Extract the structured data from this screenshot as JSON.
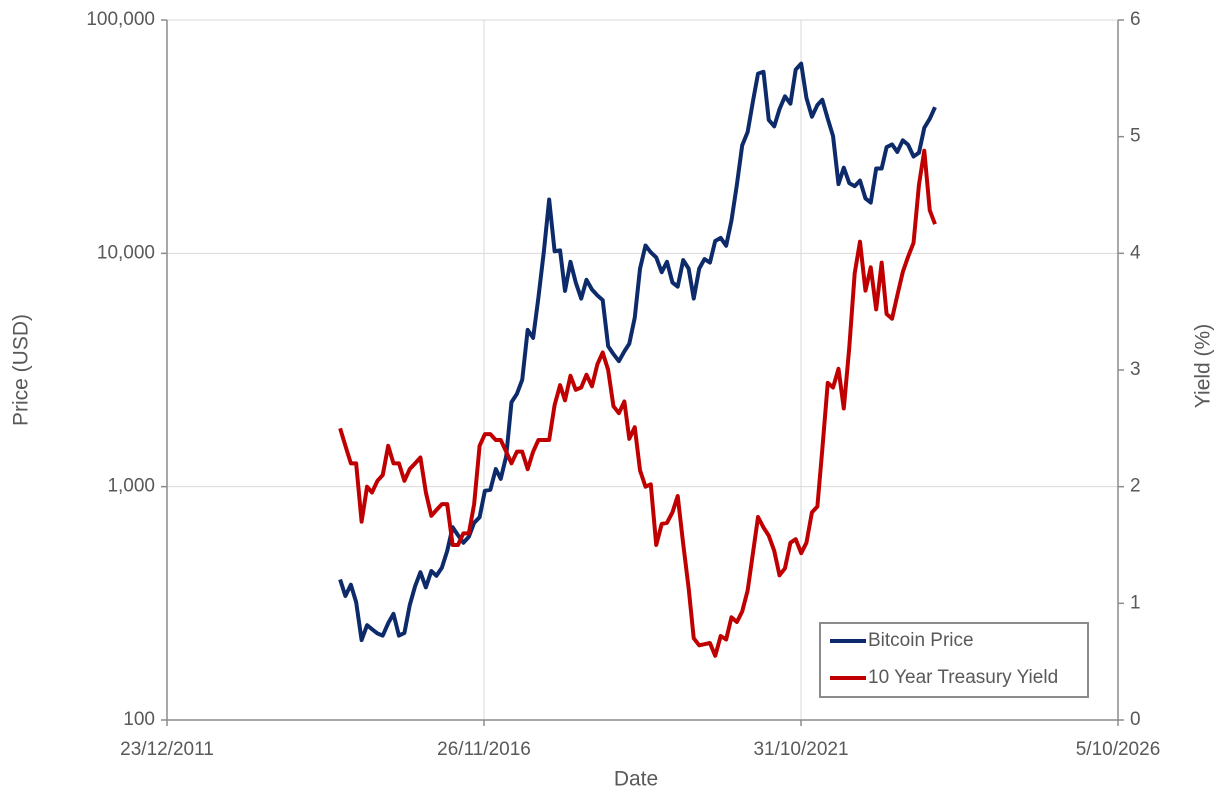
{
  "chart_data": {
    "type": "line",
    "xlabel": "Date",
    "ylabel": "Price (USD)",
    "y2label": "Yield (%)",
    "xlim": [
      "2011-12-23",
      "2026-10-05"
    ],
    "xticks": [
      {
        "value": "2011-12-23",
        "label": "23/12/2011"
      },
      {
        "value": "2016-11-26",
        "label": "26/11/2016"
      },
      {
        "value": "2021-10-31",
        "label": "31/10/2021"
      },
      {
        "value": "2026-10-05",
        "label": "5/10/2026"
      }
    ],
    "ylim": [
      100,
      100000
    ],
    "yscale": "log",
    "yticks": [
      100,
      {
        "value": 1000,
        "label": "1,000"
      },
      {
        "value": 10000,
        "label": "10,000"
      },
      {
        "value": 100000,
        "label": "100,000"
      }
    ],
    "y2lim": [
      0,
      6
    ],
    "y2ticks": [
      0,
      1,
      2,
      3,
      4,
      5,
      6
    ],
    "grid": true,
    "legend": "lower right",
    "x": [
      "2014-09",
      "2014-10",
      "2014-11",
      "2014-12",
      "2015-01",
      "2015-02",
      "2015-03",
      "2015-04",
      "2015-05",
      "2015-06",
      "2015-07",
      "2015-08",
      "2015-09",
      "2015-10",
      "2015-11",
      "2015-12",
      "2016-01",
      "2016-02",
      "2016-03",
      "2016-04",
      "2016-05",
      "2016-06",
      "2016-07",
      "2016-08",
      "2016-09",
      "2016-10",
      "2016-11",
      "2016-12",
      "2017-01",
      "2017-02",
      "2017-03",
      "2017-04",
      "2017-05",
      "2017-06",
      "2017-07",
      "2017-08",
      "2017-09",
      "2017-10",
      "2017-11",
      "2017-12",
      "2018-01",
      "2018-02",
      "2018-03",
      "2018-04",
      "2018-05",
      "2018-06",
      "2018-07",
      "2018-08",
      "2018-09",
      "2018-10",
      "2018-11",
      "2018-12",
      "2019-01",
      "2019-02",
      "2019-03",
      "2019-04",
      "2019-05",
      "2019-06",
      "2019-07",
      "2019-08",
      "2019-09",
      "2019-10",
      "2019-11",
      "2019-12",
      "2020-01",
      "2020-02",
      "2020-03",
      "2020-04",
      "2020-05",
      "2020-06",
      "2020-07",
      "2020-08",
      "2020-09",
      "2020-10",
      "2020-11",
      "2020-12",
      "2021-01",
      "2021-02",
      "2021-03",
      "2021-04",
      "2021-05",
      "2021-06",
      "2021-07",
      "2021-08",
      "2021-09",
      "2021-10",
      "2021-11",
      "2021-12",
      "2022-01",
      "2022-02",
      "2022-03",
      "2022-04",
      "2022-05",
      "2022-06",
      "2022-07",
      "2022-08",
      "2022-09",
      "2022-10",
      "2022-11",
      "2022-12",
      "2023-01",
      "2023-02",
      "2023-03",
      "2023-04",
      "2023-05",
      "2023-06",
      "2023-07",
      "2023-08",
      "2023-09",
      "2023-10",
      "2023-11",
      "2023-12"
    ],
    "series": [
      {
        "name": "Bitcoin Price",
        "color": "#0d2a6b",
        "axis": "y",
        "values": [
          400,
          340,
          380,
          320,
          220,
          255,
          245,
          235,
          230,
          260,
          285,
          230,
          236,
          310,
          375,
          430,
          370,
          435,
          415,
          450,
          530,
          670,
          620,
          575,
          610,
          700,
          740,
          960,
          970,
          1190,
          1080,
          1350,
          2300,
          2500,
          2870,
          4700,
          4340,
          6470,
          10200,
          17000,
          10200,
          10300,
          6900,
          9200,
          7500,
          6400,
          7700,
          7000,
          6600,
          6300,
          4000,
          3700,
          3450,
          3800,
          4100,
          5300,
          8600,
          10800,
          10100,
          9600,
          8300,
          9200,
          7500,
          7200,
          9350,
          8600,
          6400,
          8600,
          9450,
          9130,
          11300,
          11650,
          10780,
          13800,
          19700,
          29000,
          33100,
          45200,
          58900,
          60000,
          37300,
          35000,
          41500,
          47100,
          43800,
          61300,
          65000,
          46300,
          38500,
          43200,
          45500,
          37700,
          31800,
          19800,
          23300,
          20000,
          19400,
          20500,
          17200,
          16500,
          23100,
          23100,
          28500,
          29300,
          27200,
          30500,
          29200,
          26000,
          27000,
          34500,
          37700,
          42300
        ]
      },
      {
        "name": "10 Year Treasury Yield",
        "color": "#c00000",
        "axis": "y2",
        "values": [
          2.5,
          2.35,
          2.2,
          2.2,
          1.7,
          2.0,
          1.95,
          2.05,
          2.1,
          2.35,
          2.2,
          2.2,
          2.05,
          2.15,
          2.2,
          2.25,
          1.95,
          1.75,
          1.8,
          1.85,
          1.85,
          1.5,
          1.5,
          1.6,
          1.6,
          1.85,
          2.35,
          2.45,
          2.45,
          2.4,
          2.4,
          2.3,
          2.2,
          2.3,
          2.3,
          2.15,
          2.3,
          2.4,
          2.4,
          2.4,
          2.7,
          2.87,
          2.74,
          2.95,
          2.83,
          2.85,
          2.96,
          2.86,
          3.05,
          3.15,
          3.0,
          2.69,
          2.63,
          2.73,
          2.41,
          2.51,
          2.14,
          2.0,
          2.02,
          1.5,
          1.68,
          1.69,
          1.78,
          1.92,
          1.51,
          1.13,
          0.7,
          0.64,
          0.65,
          0.66,
          0.55,
          0.72,
          0.69,
          0.88,
          0.84,
          0.93,
          1.11,
          1.44,
          1.74,
          1.65,
          1.58,
          1.45,
          1.24,
          1.3,
          1.52,
          1.55,
          1.43,
          1.52,
          1.78,
          1.83,
          2.32,
          2.89,
          2.85,
          3.01,
          2.67,
          3.19,
          3.83,
          4.1,
          3.68,
          3.88,
          3.52,
          3.92,
          3.48,
          3.44,
          3.64,
          3.84,
          3.97,
          4.09,
          4.59,
          4.88,
          4.37,
          4.25
        ]
      }
    ]
  }
}
